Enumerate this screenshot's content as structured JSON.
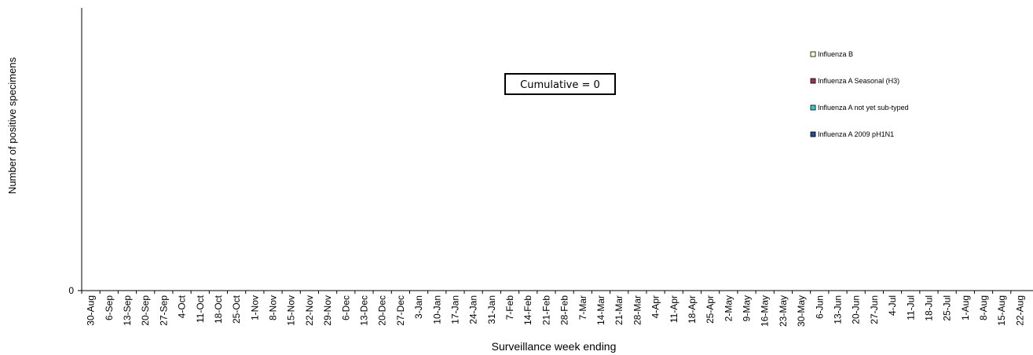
{
  "chart_data": {
    "type": "bar",
    "ylabel": "Number of positive specimens",
    "xlabel": "Surveillance week ending",
    "ylim": [
      0,
      1
    ],
    "y_ticks": [
      "0"
    ],
    "categories": [
      "30-Aug",
      "6-Sep",
      "13-Sep",
      "20-Sep",
      "27-Sep",
      "4-Oct",
      "11-Oct",
      "18-Oct",
      "25-Oct",
      "1-Nov",
      "8-Nov",
      "15-Nov",
      "22-Nov",
      "29-Nov",
      "6-Dec",
      "13-Dec",
      "20-Dec",
      "27-Dec",
      "3-Jan",
      "10-Jan",
      "17-Jan",
      "24-Jan",
      "31-Jan",
      "7-Feb",
      "14-Feb",
      "21-Feb",
      "28-Feb",
      "7-Mar",
      "14-Mar",
      "21-Mar",
      "28-Mar",
      "4-Apr",
      "11-Apr",
      "18-Apr",
      "25-Apr",
      "2-May",
      "9-May",
      "16-May",
      "23-May",
      "30-May",
      "6-Jun",
      "13-Jun",
      "20-Jun",
      "27-Jun",
      "4-Jul",
      "11-Jul",
      "18-Jul",
      "25-Jul",
      "1-Aug",
      "8-Aug",
      "15-Aug",
      "22-Aug"
    ],
    "series": [
      {
        "name": "Influenza B",
        "color": "#FFFFCC",
        "values": [
          0,
          0,
          0,
          0,
          0,
          0,
          0,
          0,
          0,
          0,
          0,
          0,
          0,
          0,
          0,
          0,
          0,
          0,
          0,
          0,
          0,
          0,
          0,
          0,
          0,
          0,
          0,
          0,
          0,
          0,
          0,
          0,
          0,
          0,
          0,
          0,
          0,
          0,
          0,
          0,
          0,
          0,
          0,
          0,
          0,
          0,
          0,
          0,
          0,
          0,
          0,
          0
        ]
      },
      {
        "name": "Influenza A Seasonal (H3)",
        "color": "#993366",
        "values": [
          0,
          0,
          0,
          0,
          0,
          0,
          0,
          0,
          0,
          0,
          0,
          0,
          0,
          0,
          0,
          0,
          0,
          0,
          0,
          0,
          0,
          0,
          0,
          0,
          0,
          0,
          0,
          0,
          0,
          0,
          0,
          0,
          0,
          0,
          0,
          0,
          0,
          0,
          0,
          0,
          0,
          0,
          0,
          0,
          0,
          0,
          0,
          0,
          0,
          0,
          0,
          0
        ]
      },
      {
        "name": "Influenza A not yet sub-typed",
        "color": "#33CCCC",
        "values": [
          0,
          0,
          0,
          0,
          0,
          0,
          0,
          0,
          0,
          0,
          0,
          0,
          0,
          0,
          0,
          0,
          0,
          0,
          0,
          0,
          0,
          0,
          0,
          0,
          0,
          0,
          0,
          0,
          0,
          0,
          0,
          0,
          0,
          0,
          0,
          0,
          0,
          0,
          0,
          0,
          0,
          0,
          0,
          0,
          0,
          0,
          0,
          0,
          0,
          0,
          0,
          0
        ]
      },
      {
        "name": "Influenza A 2009 pH1N1",
        "color": "#1F4E9A",
        "values": [
          0,
          0,
          0,
          0,
          0,
          0,
          0,
          0,
          0,
          0,
          0,
          0,
          0,
          0,
          0,
          0,
          0,
          0,
          0,
          0,
          0,
          0,
          0,
          0,
          0,
          0,
          0,
          0,
          0,
          0,
          0,
          0,
          0,
          0,
          0,
          0,
          0,
          0,
          0,
          0,
          0,
          0,
          0,
          0,
          0,
          0,
          0,
          0,
          0,
          0,
          0,
          0
        ]
      }
    ],
    "annotation": "Cumulative = 0",
    "legend_position": "right",
    "grid": false,
    "stacked": true
  }
}
